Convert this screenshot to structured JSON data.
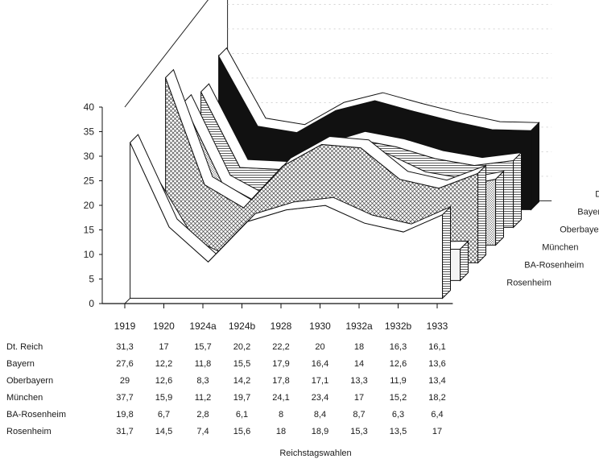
{
  "chart_data": {
    "type": "area",
    "layout": "3d-stacked-ribbons",
    "categories": [
      "1919",
      "1920",
      "1924a",
      "1924b",
      "1928",
      "1930",
      "1932a",
      "1932b",
      "1933"
    ],
    "xlabel": "Reichstagswahlen",
    "ylabel": "",
    "ylim": [
      0,
      40
    ],
    "yticks": [
      "0",
      "5",
      "10",
      "15",
      "20",
      "25",
      "30",
      "35",
      "40"
    ],
    "series": [
      {
        "name": "Dt. Reich",
        "values": [
          31.3,
          17,
          15.7,
          20.2,
          22.2,
          20,
          18,
          16.3,
          16.1
        ],
        "display": [
          "31,3",
          "17",
          "15,7",
          "20,2",
          "22,2",
          "20",
          "18",
          "16,3",
          "16,1"
        ],
        "fill": "#000000"
      },
      {
        "name": "Bayern",
        "values": [
          27.6,
          12.2,
          11.8,
          15.5,
          17.9,
          16.4,
          14,
          12.6,
          13.6
        ],
        "display": [
          "27,6",
          "12,2",
          "11,8",
          "15,5",
          "17,9",
          "16,4",
          "14",
          "12,6",
          "13,6"
        ],
        "fill": "#ffffff"
      },
      {
        "name": "Oberbayern",
        "values": [
          29,
          12.6,
          8.3,
          14.2,
          17.8,
          17.1,
          13.3,
          11.9,
          13.4
        ],
        "display": [
          "29",
          "12,6",
          "8,3",
          "14,2",
          "17,8",
          "17,1",
          "13,3",
          "11,9",
          "13,4"
        ],
        "fill": "#dcdcdc"
      },
      {
        "name": "München",
        "values": [
          37.7,
          15.9,
          11.2,
          19.7,
          24.1,
          23.4,
          17,
          15.2,
          18.2
        ],
        "display": [
          "37,7",
          "15,9",
          "11,2",
          "19,7",
          "24,1",
          "23,4",
          "17",
          "15,2",
          "18,2"
        ],
        "fill": "#b8b8b8"
      },
      {
        "name": "BA-Rosenheim",
        "values": [
          19.8,
          6.7,
          2.8,
          6.1,
          8,
          8.4,
          8.7,
          6.3,
          6.4
        ],
        "display": [
          "19,8",
          "6,7",
          "2,8",
          "6,1",
          "8",
          "8,4",
          "8,7",
          "6,3",
          "6,4"
        ],
        "fill": "#f4f4f4"
      },
      {
        "name": "Rosenheim",
        "values": [
          31.7,
          14.5,
          7.4,
          15.6,
          18,
          18.9,
          15.3,
          13.5,
          17
        ],
        "display": [
          "31,7",
          "14,5",
          "7,4",
          "15,6",
          "18",
          "18,9",
          "15,3",
          "13,5",
          "17"
        ],
        "fill": "#ffffff"
      }
    ],
    "grid": true
  }
}
